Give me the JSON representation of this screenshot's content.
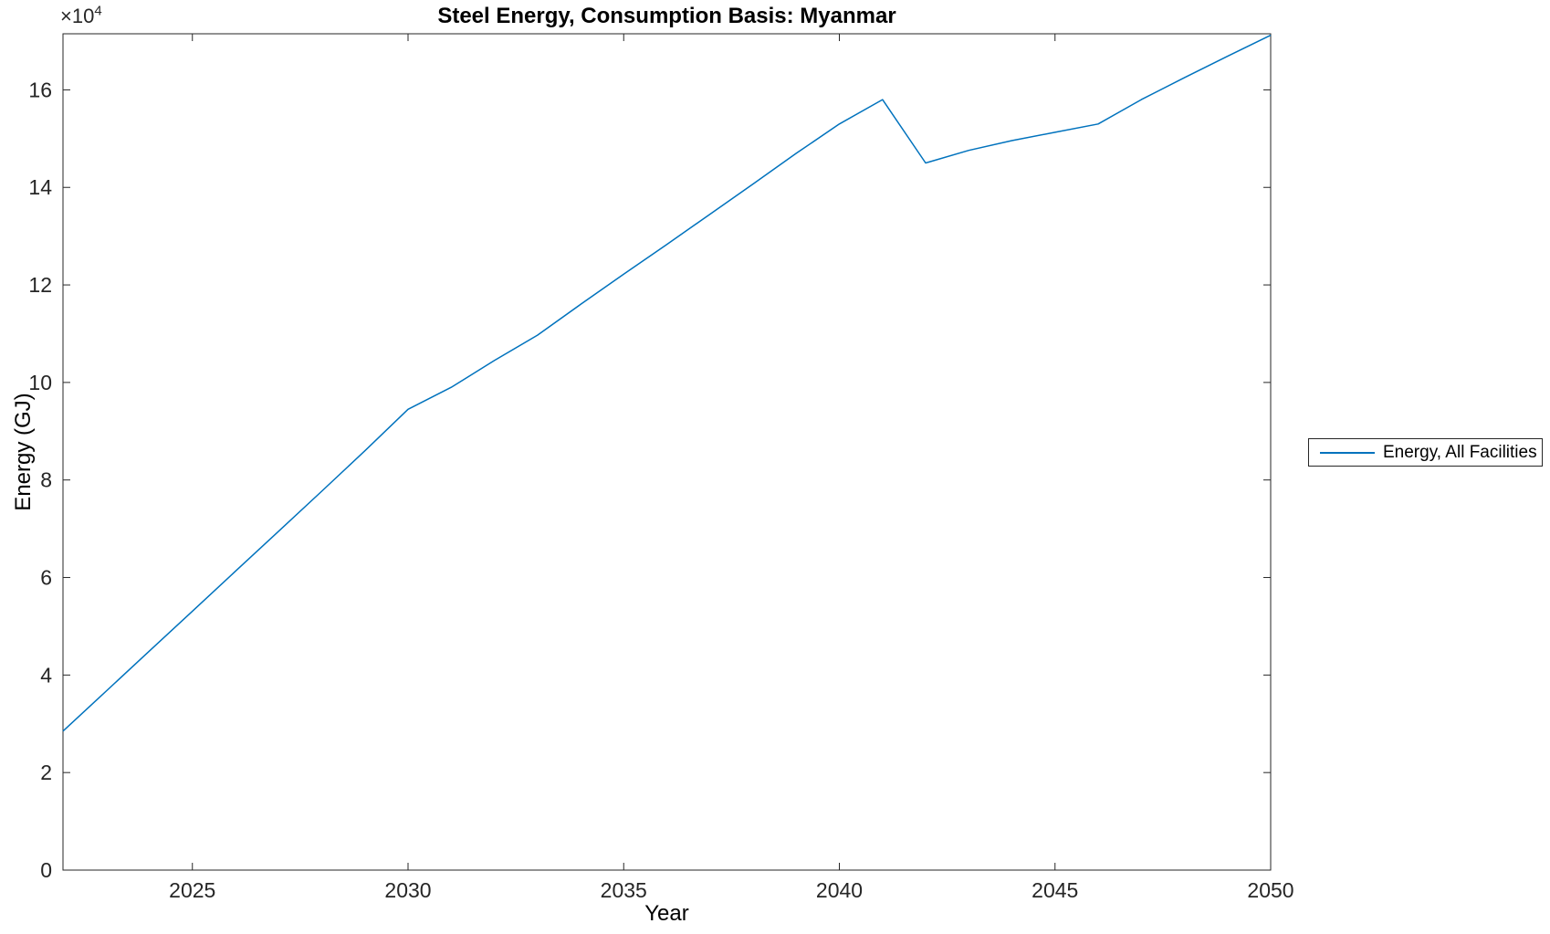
{
  "figure": {
    "title": "Steel Energy, Consumption Basis: Myanmar",
    "xlabel": "Year",
    "ylabel": "Energy (GJ)",
    "y_multiplier_base": "×10",
    "y_multiplier_exponent": "4",
    "legend": {
      "entries": [
        {
          "label": "Energy, All Facilities",
          "color": "#0072BD"
        }
      ],
      "position": "outside-right"
    }
  },
  "colors": {
    "line": "#0072BD",
    "axis": "#262626",
    "title_text": "#000000",
    "background": "#ffffff"
  },
  "chart_data": {
    "type": "line",
    "title": "Steel Energy, Consumption Basis: Myanmar",
    "xlabel": "Year",
    "ylabel": "Energy (GJ)",
    "y_axis_multiplier": 10000,
    "y_axis_multiplier_label": "×10^4",
    "xlim": [
      2022,
      2050
    ],
    "ylim_e4": [
      0,
      17.15
    ],
    "x_ticks": [
      2025,
      2030,
      2035,
      2040,
      2045,
      2050
    ],
    "y_ticks_e4": [
      0,
      2,
      4,
      6,
      8,
      10,
      12,
      14,
      16
    ],
    "grid": false,
    "box": true,
    "legend_position": "outside-right",
    "series": [
      {
        "name": "Energy, All Facilities",
        "color": "#0072BD",
        "x": [
          2022,
          2023,
          2024,
          2025,
          2026,
          2027,
          2028,
          2029,
          2030,
          2031,
          2032,
          2033,
          2034,
          2035,
          2036,
          2037,
          2038,
          2039,
          2040,
          2041,
          2042,
          2043,
          2044,
          2045,
          2046,
          2047,
          2048,
          2049,
          2050
        ],
        "y_e4": [
          2.85,
          3.67,
          4.49,
          5.31,
          6.13,
          6.95,
          7.77,
          8.6,
          9.45,
          9.9,
          10.45,
          10.97,
          11.6,
          12.22,
          12.83,
          13.45,
          14.07,
          14.7,
          15.3,
          15.8,
          14.5,
          14.76,
          14.96,
          15.13,
          15.3,
          15.8,
          16.25,
          16.69,
          17.12
        ]
      }
    ]
  }
}
